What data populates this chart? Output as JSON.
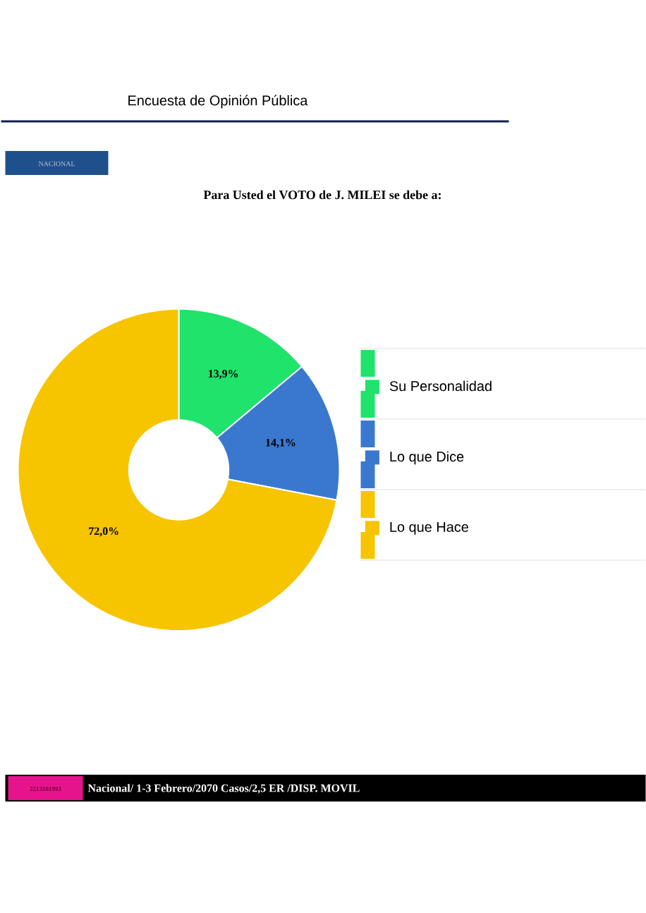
{
  "chart_data": {
    "type": "donut",
    "title": "Para Usted el VOTO de J. MILEI se debe a:",
    "categories": [
      "Su Personalidad",
      "Lo que Dice",
      "Lo que Hace"
    ],
    "values": [
      13.9,
      14.1,
      72.0
    ],
    "colors": [
      "#1fe36b",
      "#3a78d0",
      "#f7c400"
    ],
    "value_labels": [
      "13,9%",
      "14,1%",
      "72,0%"
    ],
    "legend": "right",
    "annotations": [
      "Encuesta de Opinión Pública",
      "NACIONAL",
      "2213101993",
      "Nacional/ 1-3 Febrero/2070 Casos/2,5 ER /DISP. MOVIL"
    ]
  }
}
